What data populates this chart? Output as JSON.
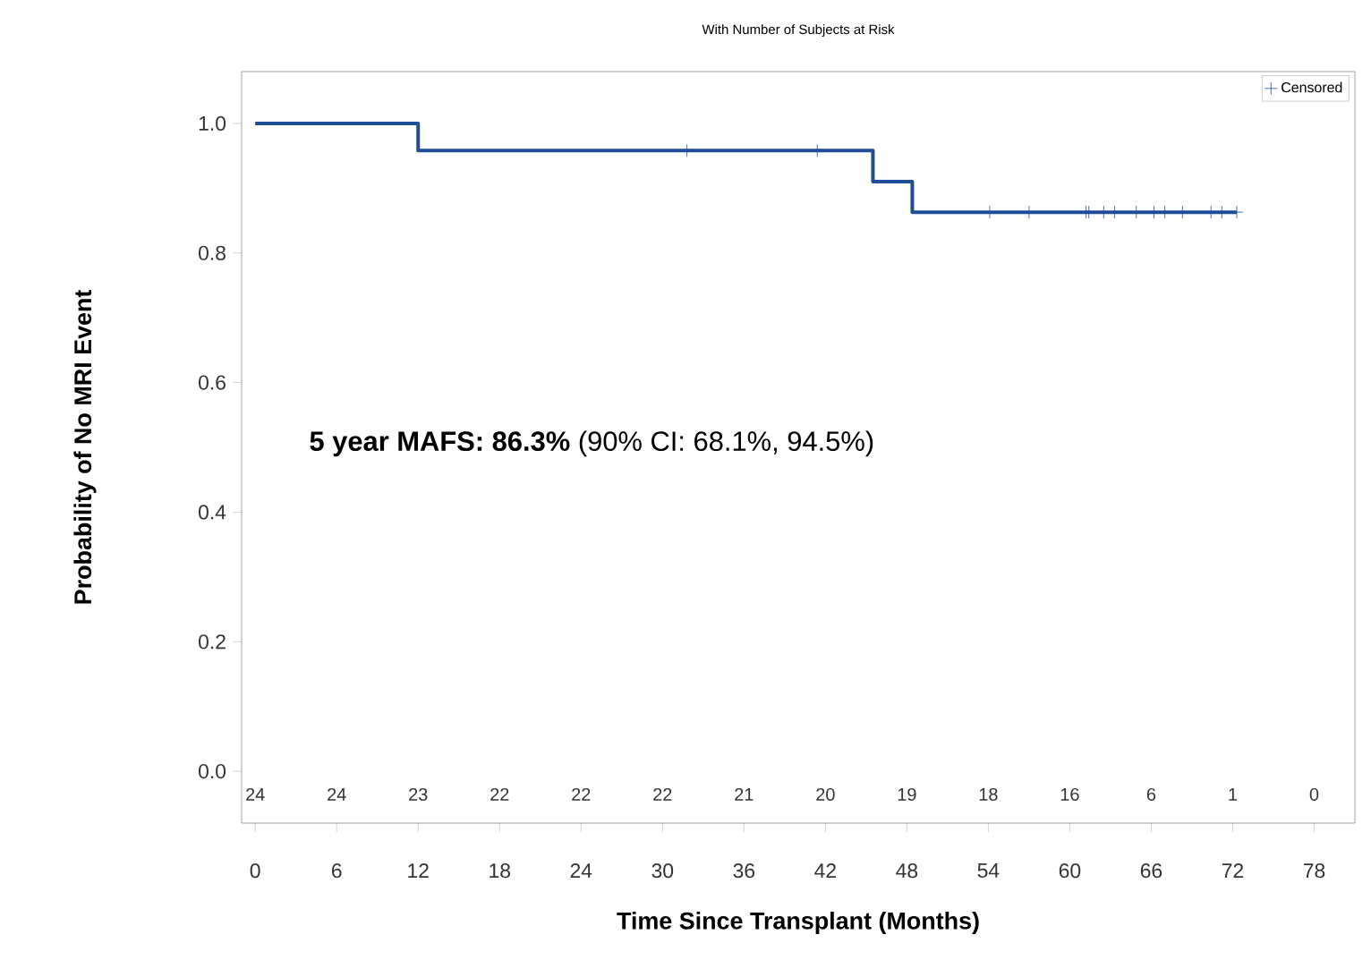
{
  "chart_data": {
    "type": "step",
    "title": "With Number of Subjects at Risk",
    "xlabel": "Time Since Transplant (Months)",
    "ylabel": "Probability of No MRI Event",
    "series": [
      {
        "color": "#1f4e99",
        "x": [
          0,
          12,
          45.5,
          48.4,
          72.3
        ],
        "values": [
          1.0,
          0.958,
          0.91,
          0.863,
          0.863
        ],
        "marker": "none"
      },
      {
        "type": "scatter",
        "name": "Censored",
        "color": "#1f4e99",
        "marker": "cross",
        "x": [
          31.8,
          41.4,
          54.1,
          57.0,
          61.2,
          61.4,
          62.5,
          63.3,
          64.9,
          66.2,
          67.0,
          68.3,
          70.4,
          71.2,
          72.3
        ],
        "values": [
          0.958,
          0.958,
          0.863,
          0.863,
          0.863,
          0.863,
          0.863,
          0.863,
          0.863,
          0.863,
          0.863,
          0.863,
          0.863,
          0.863,
          0.863
        ]
      }
    ],
    "xlim": [
      -1,
      81
    ],
    "ylim": [
      -0.08,
      1.08
    ],
    "xticks": [
      0,
      6,
      12,
      18,
      24,
      30,
      36,
      42,
      48,
      54,
      60,
      66,
      72,
      78
    ],
    "yticks": [
      {
        "value": 0,
        "label": "0.0"
      },
      {
        "value": 0.2,
        "label": "0.2"
      },
      {
        "value": 0.4,
        "label": "0.4"
      },
      {
        "value": 0.6,
        "label": "0.6"
      },
      {
        "value": 0.8,
        "label": "0.8"
      },
      {
        "value": 1.0,
        "label": "1.0"
      }
    ],
    "legend": "top right",
    "grid": false,
    "annotations": [
      "24",
      "24",
      "23",
      "22",
      "22",
      "22",
      "21",
      "20",
      "19",
      "18",
      "16",
      "6",
      "1",
      "0",
      "**5 year MAFS: 86.3%** (90% CI: 68.1%, 94.5%)"
    ]
  }
}
